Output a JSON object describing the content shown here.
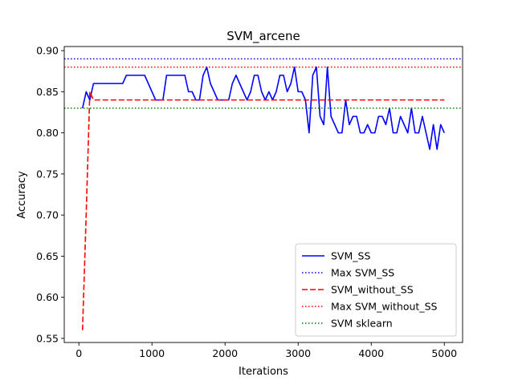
{
  "chart_data": {
    "type": "line",
    "title": "SVM_arcene",
    "xlabel": "Iterations",
    "ylabel": "Accuracy",
    "xlim": [
      -200,
      5250
    ],
    "ylim": [
      0.545,
      0.905
    ],
    "xticks": [
      0,
      1000,
      2000,
      3000,
      4000,
      5000
    ],
    "yticks": [
      0.55,
      0.6,
      0.65,
      0.7,
      0.75,
      0.8,
      0.85,
      0.9
    ],
    "ytick_labels": [
      "0.55",
      "0.60",
      "0.65",
      "0.70",
      "0.75",
      "0.80",
      "0.85",
      "0.90"
    ],
    "grid": false,
    "legend_position": "lower-right",
    "series": [
      {
        "name": "SVM_SS",
        "color": "#0000ff",
        "style": "solid",
        "x": [
          50,
          100,
          150,
          200,
          250,
          300,
          350,
          400,
          450,
          500,
          550,
          600,
          650,
          700,
          750,
          800,
          850,
          900,
          950,
          1000,
          1050,
          1100,
          1150,
          1200,
          1250,
          1300,
          1350,
          1400,
          1450,
          1500,
          1550,
          1600,
          1650,
          1700,
          1750,
          1800,
          1850,
          1900,
          1950,
          2000,
          2050,
          2100,
          2150,
          2200,
          2250,
          2300,
          2350,
          2400,
          2450,
          2500,
          2550,
          2600,
          2650,
          2700,
          2750,
          2800,
          2850,
          2900,
          2950,
          3000,
          3050,
          3100,
          3150,
          3200,
          3250,
          3300,
          3350,
          3400,
          3450,
          3500,
          3550,
          3600,
          3650,
          3700,
          3750,
          3800,
          3850,
          3900,
          3950,
          4000,
          4050,
          4100,
          4150,
          4200,
          4250,
          4300,
          4350,
          4400,
          4450,
          4500,
          4550,
          4600,
          4650,
          4700,
          4750,
          4800,
          4850,
          4900,
          4950,
          5000
        ],
        "y": [
          0.83,
          0.85,
          0.84,
          0.86,
          0.86,
          0.86,
          0.86,
          0.86,
          0.86,
          0.86,
          0.86,
          0.86,
          0.87,
          0.87,
          0.87,
          0.87,
          0.87,
          0.87,
          0.86,
          0.85,
          0.84,
          0.84,
          0.84,
          0.87,
          0.87,
          0.87,
          0.87,
          0.87,
          0.87,
          0.85,
          0.85,
          0.84,
          0.84,
          0.87,
          0.88,
          0.86,
          0.85,
          0.84,
          0.84,
          0.84,
          0.84,
          0.86,
          0.87,
          0.86,
          0.85,
          0.84,
          0.85,
          0.87,
          0.87,
          0.85,
          0.84,
          0.85,
          0.84,
          0.85,
          0.87,
          0.87,
          0.85,
          0.86,
          0.88,
          0.85,
          0.85,
          0.84,
          0.8,
          0.87,
          0.88,
          0.82,
          0.81,
          0.88,
          0.82,
          0.81,
          0.8,
          0.8,
          0.84,
          0.81,
          0.82,
          0.82,
          0.8,
          0.8,
          0.81,
          0.8,
          0.8,
          0.82,
          0.82,
          0.81,
          0.83,
          0.8,
          0.8,
          0.82,
          0.81,
          0.8,
          0.83,
          0.8,
          0.8,
          0.82,
          0.8,
          0.78,
          0.81,
          0.78,
          0.81,
          0.8
        ]
      },
      {
        "name": "Max SVM_SS",
        "color": "#0000ff",
        "style": "dotted",
        "hline": 0.89
      },
      {
        "name": "SVM_without_SS",
        "color": "#ff0000",
        "style": "dashed",
        "x": [
          50,
          100,
          150,
          200,
          250,
          300,
          350,
          400,
          450,
          500,
          550,
          600,
          650,
          700,
          750,
          800,
          850,
          900,
          950,
          1000,
          1050,
          1100,
          1150,
          1200,
          1250,
          1300,
          1350,
          1400,
          1450,
          1500,
          1550,
          1600,
          1650,
          1700,
          1750,
          1800,
          1850,
          1900,
          1950,
          2000,
          2050,
          2100,
          2150,
          2200,
          2250,
          2300,
          2350,
          2400,
          2450,
          2500,
          2550,
          2600,
          2650,
          2700,
          2750,
          2800,
          2850,
          2900,
          2950,
          3000,
          3050,
          3100,
          3150,
          3200,
          3250,
          3300,
          3350,
          3400,
          3450,
          3500,
          3550,
          3600,
          3650,
          3700,
          3750,
          3800,
          3850,
          3900,
          3950,
          4000,
          4050,
          4100,
          4150,
          4200,
          4250,
          4300,
          4350,
          4400,
          4450,
          4500,
          4550,
          4600,
          4650,
          4700,
          4750,
          4800,
          4850,
          4900,
          4950,
          5000
        ],
        "y": [
          0.56,
          0.7,
          0.85,
          0.84,
          0.84,
          0.84,
          0.84,
          0.84,
          0.84,
          0.84,
          0.84,
          0.84,
          0.84,
          0.84,
          0.84,
          0.84,
          0.84,
          0.84,
          0.84,
          0.84,
          0.84,
          0.84,
          0.84,
          0.84,
          0.84,
          0.84,
          0.84,
          0.84,
          0.84,
          0.84,
          0.84,
          0.84,
          0.84,
          0.84,
          0.84,
          0.84,
          0.84,
          0.84,
          0.84,
          0.84,
          0.84,
          0.84,
          0.84,
          0.84,
          0.84,
          0.84,
          0.84,
          0.84,
          0.84,
          0.84,
          0.84,
          0.84,
          0.84,
          0.84,
          0.84,
          0.84,
          0.84,
          0.84,
          0.84,
          0.84,
          0.84,
          0.84,
          0.84,
          0.84,
          0.84,
          0.84,
          0.84,
          0.84,
          0.84,
          0.84,
          0.84,
          0.84,
          0.84,
          0.84,
          0.84,
          0.84,
          0.84,
          0.84,
          0.84,
          0.84,
          0.84,
          0.84,
          0.84,
          0.84,
          0.84,
          0.84,
          0.84,
          0.84,
          0.84,
          0.84,
          0.84,
          0.84,
          0.84,
          0.84,
          0.84,
          0.84,
          0.84,
          0.84,
          0.84,
          0.84
        ]
      },
      {
        "name": "Max SVM_without_SS",
        "color": "#ff0000",
        "style": "dotted",
        "hline": 0.88
      },
      {
        "name": "SVM sklearn",
        "color": "#008000",
        "style": "dotted",
        "hline": 0.83
      }
    ]
  }
}
